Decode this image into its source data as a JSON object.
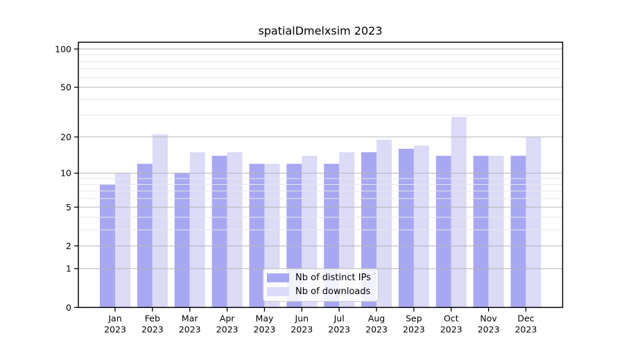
{
  "chart_data": {
    "type": "bar",
    "title": "spatialDmelxsim 2023",
    "y_scale": "log1p",
    "grid": true,
    "legend_position": "lower center",
    "year": "2023",
    "categories": [
      "Jan",
      "Feb",
      "Mar",
      "Apr",
      "May",
      "Jun",
      "Jul",
      "Aug",
      "Sep",
      "Oct",
      "Nov",
      "Dec"
    ],
    "series": [
      {
        "name": "Nb of distinct IPs",
        "color": "#a8a8f2",
        "values": [
          8,
          12,
          10,
          14,
          12,
          12,
          12,
          15,
          16,
          14,
          14,
          14
        ]
      },
      {
        "name": "Nb of downloads",
        "color": "#dbdbf8",
        "values": [
          10,
          21,
          15,
          15,
          12,
          14,
          15,
          19,
          17,
          29,
          14,
          20
        ]
      }
    ],
    "ylim": [
      0,
      113
    ],
    "y_major_ticks": [
      0,
      1,
      2,
      5,
      10,
      20,
      50,
      100
    ],
    "y_minor_gridlines": [
      3,
      4,
      6,
      7,
      8,
      9,
      30,
      40,
      60,
      70,
      80,
      90
    ],
    "colors": {
      "major_grid": "#b3b3b3",
      "minor_grid": "#e7e7e7",
      "axis": "#000000",
      "tick_label": "#000000",
      "background": "#ffffff"
    }
  }
}
